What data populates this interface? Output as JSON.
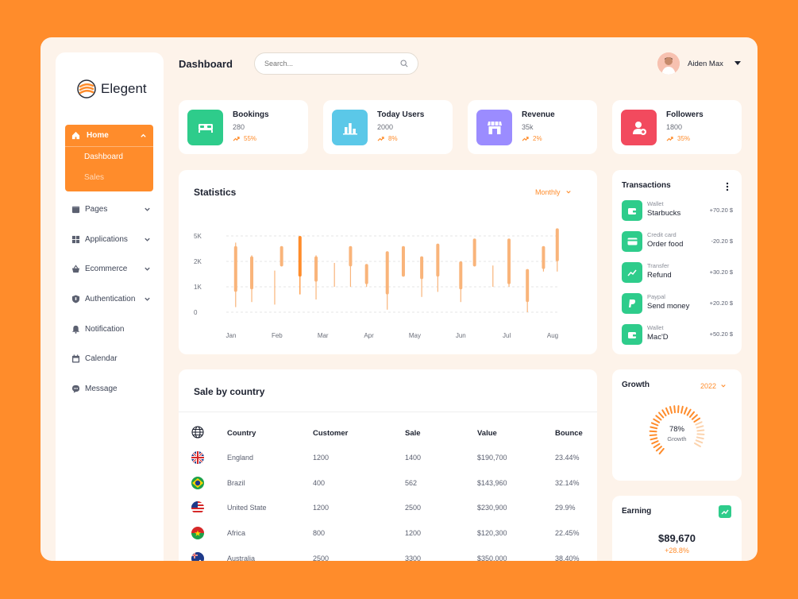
{
  "brand": {
    "name": "Elegent"
  },
  "header": {
    "title": "Dashboard",
    "search_placeholder": "Search...",
    "user_name": "Aiden Max"
  },
  "sidebar": {
    "home": {
      "label": "Home",
      "subitems": [
        "Dashboard",
        "Sales"
      ]
    },
    "items": [
      {
        "label": "Pages",
        "icon": "folder-icon",
        "has_chevron": true
      },
      {
        "label": "Applications",
        "icon": "grid-icon",
        "has_chevron": true
      },
      {
        "label": "Ecommerce",
        "icon": "basket-icon",
        "has_chevron": true
      },
      {
        "label": "Authentication",
        "icon": "shield-icon",
        "has_chevron": true
      },
      {
        "label": "Notification",
        "icon": "bell-icon",
        "has_chevron": false
      },
      {
        "label": "Calendar",
        "icon": "calendar-icon",
        "has_chevron": false
      },
      {
        "label": "Message",
        "icon": "chat-icon",
        "has_chevron": false
      }
    ]
  },
  "stats": [
    {
      "name": "Bookings",
      "value": "280",
      "trend": "55%",
      "color": "#2ECC8B",
      "icon": "bed-icon"
    },
    {
      "name": "Today Users",
      "value": "2000",
      "trend": "8%",
      "color": "#5BC8E8",
      "icon": "bar-chart-icon"
    },
    {
      "name": "Revenue",
      "value": "35k",
      "trend": "2%",
      "color": "#9B8CFF",
      "icon": "store-icon"
    },
    {
      "name": "Followers",
      "value": "1800",
      "trend": "35%",
      "color": "#F24A5E",
      "icon": "user-add-icon"
    }
  ],
  "statistics": {
    "title": "Statistics",
    "period": "Monthly"
  },
  "chart_data": {
    "type": "candlestick",
    "title": "Statistics",
    "y_ticks": [
      "0",
      "1K",
      "2K",
      "5K"
    ],
    "x_ticks": [
      "Jan",
      "Feb",
      "Mar",
      "Apr",
      "May",
      "Jun",
      "Jul",
      "Aug"
    ],
    "colors": {
      "candle": "#F9B47A",
      "highlight": "#FF8C2B"
    },
    "note": "values given in y-axis tick units where 0,1,2,3 map to ticks 0,1K,2K,5K",
    "candles": [
      {
        "x": 0.1,
        "low": 0.2,
        "open": 0.8,
        "close": 2.6,
        "high": 2.8,
        "hl": false
      },
      {
        "x": 0.45,
        "low": 0.4,
        "open": 0.9,
        "close": 2.2,
        "high": 2.3,
        "hl": false
      },
      {
        "x": 0.95,
        "low": 0.3,
        "open": 1.7,
        "close": 1.7,
        "high": 1.7,
        "hl": false
      },
      {
        "x": 1.1,
        "low": 1.8,
        "open": 1.8,
        "close": 2.6,
        "high": 2.6,
        "hl": false
      },
      {
        "x": 1.5,
        "low": 0.7,
        "open": 1.4,
        "close": 3.0,
        "high": 3.0,
        "hl": true
      },
      {
        "x": 1.85,
        "low": 0.5,
        "open": 1.2,
        "close": 2.2,
        "high": 2.3,
        "hl": false
      },
      {
        "x": 2.25,
        "low": 1.0,
        "open": 2.0,
        "close": 2.0,
        "high": 2.0,
        "hl": false
      },
      {
        "x": 2.6,
        "low": 1.0,
        "open": 1.8,
        "close": 2.6,
        "high": 2.6,
        "hl": false
      },
      {
        "x": 2.95,
        "low": 1.0,
        "open": 1.1,
        "close": 1.9,
        "high": 1.9,
        "hl": false
      },
      {
        "x": 3.4,
        "low": 0.1,
        "open": 0.7,
        "close": 2.4,
        "high": 2.4,
        "hl": false
      },
      {
        "x": 3.75,
        "low": 1.4,
        "open": 1.4,
        "close": 2.6,
        "high": 2.6,
        "hl": false
      },
      {
        "x": 4.15,
        "low": 0.6,
        "open": 1.3,
        "close": 2.2,
        "high": 2.2,
        "hl": false
      },
      {
        "x": 4.5,
        "low": 0.8,
        "open": 1.4,
        "close": 2.7,
        "high": 2.7,
        "hl": false
      },
      {
        "x": 5.0,
        "low": 0.4,
        "open": 0.9,
        "close": 2.0,
        "high": 2.0,
        "hl": false
      },
      {
        "x": 5.3,
        "low": 1.8,
        "open": 1.8,
        "close": 2.9,
        "high": 2.9,
        "hl": false
      },
      {
        "x": 5.7,
        "low": 1.0,
        "open": 1.9,
        "close": 1.9,
        "high": 1.9,
        "hl": false
      },
      {
        "x": 6.05,
        "low": 1.0,
        "open": 1.1,
        "close": 2.9,
        "high": 2.9,
        "hl": false
      },
      {
        "x": 6.45,
        "low": 0.0,
        "open": 0.4,
        "close": 1.7,
        "high": 1.7,
        "hl": false
      },
      {
        "x": 6.8,
        "low": 1.6,
        "open": 1.7,
        "close": 2.6,
        "high": 2.6,
        "hl": false
      },
      {
        "x": 7.1,
        "low": 1.6,
        "open": 2.0,
        "close": 3.3,
        "high": 3.3,
        "hl": false
      }
    ]
  },
  "sale_by_country": {
    "title": "Sale by country",
    "columns": [
      "Country",
      "Customer",
      "Sale",
      "Value",
      "Bounce"
    ],
    "rows": [
      {
        "flag": "uk",
        "country": "England",
        "customer": "1200",
        "sale": "1400",
        "value": "$190,700",
        "bounce": "23.44%"
      },
      {
        "flag": "brazil",
        "country": "Brazil",
        "customer": "400",
        "sale": "562",
        "value": "$143,960",
        "bounce": "32.14%"
      },
      {
        "flag": "usa",
        "country": "United State",
        "customer": "1200",
        "sale": "2500",
        "value": "$230,900",
        "bounce": "29.9%"
      },
      {
        "flag": "africa",
        "country": "Africa",
        "customer": "800",
        "sale": "1200",
        "value": "$120,300",
        "bounce": "22.45%"
      },
      {
        "flag": "australia",
        "country": "Australia",
        "customer": "2500",
        "sale": "3300",
        "value": "$350,000",
        "bounce": "38.40%"
      }
    ]
  },
  "transactions": {
    "title": "Transactions",
    "items": [
      {
        "type": "Wallet",
        "name": "Starbucks",
        "amount": "+70.20 $",
        "icon": "wallet-icon"
      },
      {
        "type": "Credit card",
        "name": "Order food",
        "amount": "-20.20 $",
        "icon": "credit-card-icon"
      },
      {
        "type": "Transfer",
        "name": "Refund",
        "amount": "+30.20 $",
        "icon": "trend-up-icon"
      },
      {
        "type": "Paypal",
        "name": "Send money",
        "amount": "+20.20 $",
        "icon": "paypal-icon"
      },
      {
        "type": "Wallet",
        "name": "Mac'D",
        "amount": "+50.20 $",
        "icon": "wallet-icon"
      }
    ]
  },
  "growth": {
    "title": "Growth",
    "year": "2022",
    "percent": "78%",
    "label": "Growth",
    "value": 0.78
  },
  "earning": {
    "title": "Earning",
    "value": "$89,670",
    "change": "+28.8%"
  }
}
